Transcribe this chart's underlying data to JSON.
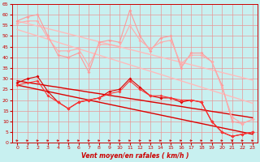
{
  "xlabel": "Vent moyen/en rafales ( km/h )",
  "xlim": [
    -0.5,
    23.5
  ],
  "ylim": [
    0,
    65
  ],
  "yticks": [
    0,
    5,
    10,
    15,
    20,
    25,
    30,
    35,
    40,
    45,
    50,
    55,
    60,
    65
  ],
  "xticks": [
    0,
    1,
    2,
    3,
    4,
    5,
    6,
    7,
    8,
    9,
    10,
    11,
    12,
    13,
    14,
    15,
    16,
    17,
    18,
    19,
    20,
    21,
    22,
    23
  ],
  "background_color": "#c8f0f0",
  "grid_color": "#e89898",
  "series": {
    "light_jagged1": {
      "color": "#ff9999",
      "linewidth": 0.8,
      "markersize": 2.0,
      "values": [
        57,
        59,
        60,
        50,
        41,
        40,
        42,
        33,
        47,
        48,
        47,
        62,
        50,
        43,
        49,
        50,
        35,
        42,
        42,
        38,
        27,
        10,
        9,
        11
      ]
    },
    "light_jagged2": {
      "color": "#ffaaaa",
      "linewidth": 0.8,
      "markersize": 2.0,
      "values": [
        56,
        57,
        57,
        49,
        43,
        43,
        44,
        36,
        46,
        46,
        45,
        55,
        48,
        44,
        47,
        48,
        37,
        41,
        41,
        38,
        26,
        12,
        9,
        11
      ]
    },
    "trend_light_upper": {
      "color": "#ffbbbb",
      "linewidth": 1.0,
      "values": [
        57,
        55.8,
        54.6,
        53.4,
        52.2,
        51.0,
        49.8,
        48.5,
        47.3,
        46.1,
        44.9,
        43.7,
        42.5,
        41.3,
        40.1,
        38.9,
        37.7,
        36.5,
        35.3,
        34.1,
        32.9,
        31.7,
        30.5,
        29.3
      ]
    },
    "trend_light_lower": {
      "color": "#ffbbbb",
      "linewidth": 1.0,
      "values": [
        53,
        51.5,
        50.0,
        48.5,
        47.0,
        45.5,
        44.0,
        42.5,
        41.0,
        39.5,
        38.0,
        36.5,
        35.0,
        33.5,
        32.0,
        30.5,
        29.0,
        27.5,
        26.0,
        24.5,
        23.0,
        21.5,
        20.0,
        18.5
      ]
    },
    "dark_jagged1": {
      "color": "#dd0000",
      "linewidth": 0.8,
      "markersize": 2.0,
      "values": [
        28,
        30,
        31,
        24,
        19,
        16,
        19,
        20,
        21,
        24,
        25,
        30,
        26,
        22,
        21,
        21,
        19,
        20,
        19,
        10,
        5,
        3,
        4,
        5
      ]
    },
    "dark_jagged2": {
      "color": "#ff3333",
      "linewidth": 0.8,
      "markersize": 2.0,
      "values": [
        27,
        28,
        29,
        22,
        19,
        16,
        19,
        20,
        21,
        23,
        24,
        29,
        25,
        22,
        22,
        21,
        20,
        20,
        19,
        10,
        5,
        3,
        4,
        5
      ]
    },
    "trend_dark_upper": {
      "color": "#dd0000",
      "linewidth": 1.0,
      "values": [
        29,
        28.2,
        27.5,
        26.7,
        26.0,
        25.2,
        24.5,
        23.7,
        23.0,
        22.2,
        21.5,
        20.7,
        20.0,
        19.2,
        18.5,
        17.7,
        17.0,
        16.2,
        15.5,
        14.7,
        14.0,
        13.2,
        12.5,
        11.7
      ]
    },
    "trend_dark_lower": {
      "color": "#dd0000",
      "linewidth": 1.0,
      "values": [
        27,
        26.0,
        25.0,
        24.0,
        23.0,
        22.0,
        21.0,
        20.0,
        19.0,
        18.0,
        17.0,
        16.0,
        15.0,
        14.0,
        13.0,
        12.0,
        11.0,
        10.0,
        9.0,
        8.0,
        7.0,
        6.0,
        5.0,
        4.0
      ]
    }
  },
  "arrows_right": [
    0,
    1,
    2,
    3,
    4,
    5,
    6,
    7,
    8,
    9,
    10,
    11,
    12,
    13,
    14,
    15,
    16,
    17,
    18,
    19,
    20,
    22,
    23
  ],
  "arrow_down": [
    21
  ]
}
